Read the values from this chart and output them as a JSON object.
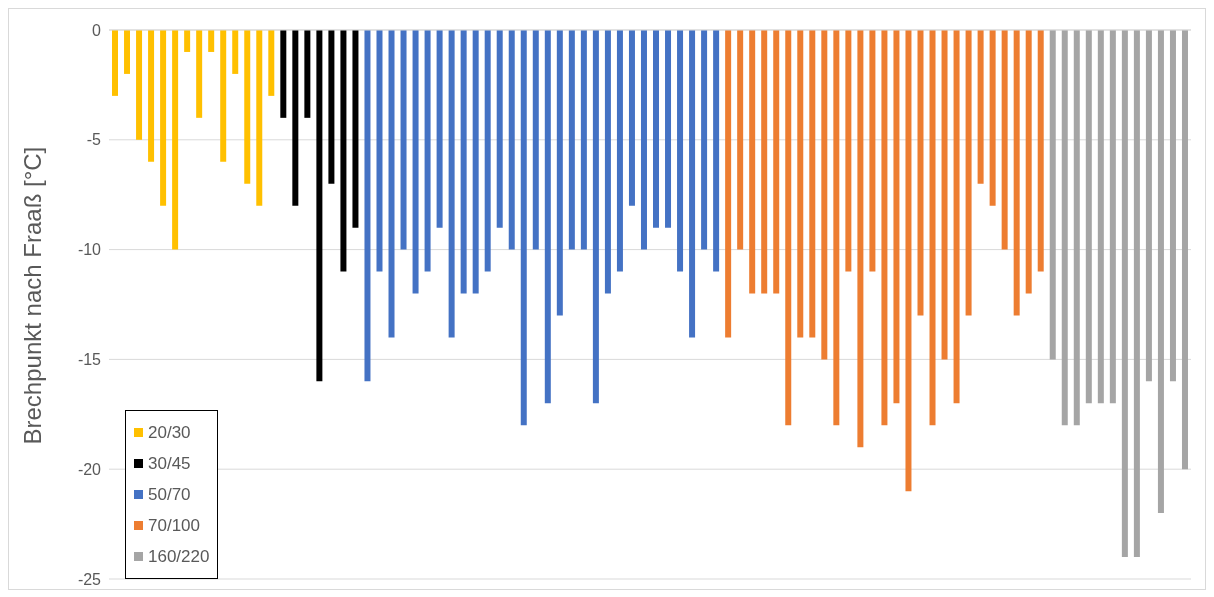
{
  "chart_data": {
    "type": "bar",
    "ylabel": "Brechpunkt nach Fraaß [°C]",
    "categories": [
      null,
      null,
      null,
      null,
      null,
      null,
      null,
      null,
      null,
      null,
      null,
      null,
      null,
      null,
      null,
      null,
      null,
      null,
      null,
      null,
      null,
      null,
      null,
      null,
      null,
      null,
      null,
      null,
      null,
      null,
      null,
      null,
      null,
      null,
      null,
      null,
      null,
      null,
      null,
      null,
      null,
      null,
      null,
      null,
      null,
      null,
      null,
      null,
      null,
      null,
      null,
      null,
      null,
      null,
      null,
      null,
      null,
      null,
      null,
      null,
      null,
      null,
      null,
      null,
      null,
      null,
      null,
      null,
      null,
      null,
      null,
      null,
      null,
      null,
      null,
      null,
      null,
      null,
      null,
      null,
      null,
      null,
      null,
      null,
      null,
      null,
      null,
      null,
      null,
      null
    ],
    "stacked": true,
    "series": [
      {
        "name": "20/30",
        "color": "#ffc000",
        "values": [
          -3,
          -2,
          -5,
          -6,
          -8,
          -10,
          -1,
          -4,
          -1,
          -6,
          -2,
          -7,
          -8,
          -3,
          null,
          null,
          null,
          null,
          null,
          null,
          null,
          null,
          null,
          null,
          null,
          null,
          null,
          null,
          null,
          null,
          null,
          null,
          null,
          null,
          null,
          null,
          null,
          null,
          null,
          null,
          null,
          null,
          null,
          null,
          null,
          null,
          null,
          null,
          null,
          null,
          null,
          null,
          null,
          null,
          null,
          null,
          null,
          null,
          null,
          null,
          null,
          null,
          null,
          null,
          null,
          null,
          null,
          null,
          null,
          null,
          null,
          null,
          null,
          null,
          null,
          null,
          null,
          null,
          null,
          null,
          null,
          null,
          null,
          null,
          null,
          null,
          null,
          null,
          null,
          null
        ]
      },
      {
        "name": "30/45",
        "color": "#000000",
        "values": [
          null,
          null,
          null,
          null,
          null,
          null,
          null,
          null,
          null,
          null,
          null,
          null,
          null,
          null,
          -4,
          -8,
          -4,
          -16,
          -7,
          -11,
          -9,
          null,
          null,
          null,
          null,
          null,
          null,
          null,
          null,
          null,
          null,
          null,
          null,
          null,
          null,
          null,
          null,
          null,
          null,
          null,
          null,
          null,
          null,
          null,
          null,
          null,
          null,
          null,
          null,
          null,
          null,
          null,
          null,
          null,
          null,
          null,
          null,
          null,
          null,
          null,
          null,
          null,
          null,
          null,
          null,
          null,
          null,
          null,
          null,
          null,
          null,
          null,
          null,
          null,
          null,
          null,
          null,
          null,
          null,
          null,
          null,
          null,
          null,
          null,
          null,
          null,
          null,
          null,
          null,
          null
        ]
      },
      {
        "name": "50/70",
        "color": "#4472c4",
        "values": [
          null,
          null,
          null,
          null,
          null,
          null,
          null,
          null,
          null,
          null,
          null,
          null,
          null,
          null,
          null,
          null,
          null,
          null,
          null,
          null,
          null,
          -16,
          -11,
          -14,
          -10,
          -12,
          -11,
          -9,
          -14,
          -12,
          -12,
          -11,
          -9,
          -10,
          -18,
          -10,
          -17,
          -13,
          -10,
          -10,
          -17,
          -12,
          -11,
          -8,
          -10,
          -9,
          -9,
          -11,
          -14,
          -10,
          -11,
          null,
          null,
          null,
          null,
          null,
          null,
          null,
          null,
          null,
          null,
          null,
          null,
          null,
          null,
          null,
          null,
          null,
          null,
          null,
          null,
          null,
          null,
          null,
          null,
          null,
          null,
          null,
          null,
          null,
          null,
          null,
          null,
          null,
          null,
          null,
          null,
          null,
          null,
          null
        ]
      },
      {
        "name": "70/100",
        "color": "#ed7d31",
        "values": [
          null,
          null,
          null,
          null,
          null,
          null,
          null,
          null,
          null,
          null,
          null,
          null,
          null,
          null,
          null,
          null,
          null,
          null,
          null,
          null,
          null,
          null,
          null,
          null,
          null,
          null,
          null,
          null,
          null,
          null,
          null,
          null,
          null,
          null,
          null,
          null,
          null,
          null,
          null,
          null,
          null,
          null,
          null,
          null,
          null,
          null,
          null,
          null,
          null,
          null,
          null,
          -14,
          -10,
          -12,
          -12,
          -12,
          -18,
          -14,
          -14,
          -15,
          -18,
          -11,
          -19,
          -11,
          -18,
          -17,
          -21,
          -13,
          -18,
          -15,
          -17,
          -13,
          -7,
          -8,
          -10,
          -13,
          -12,
          -11,
          null,
          null,
          null,
          null,
          null,
          null,
          null,
          null,
          null,
          null,
          null,
          null
        ]
      },
      {
        "name": "160/220",
        "color": "#a5a5a5",
        "values": [
          null,
          null,
          null,
          null,
          null,
          null,
          null,
          null,
          null,
          null,
          null,
          null,
          null,
          null,
          null,
          null,
          null,
          null,
          null,
          null,
          null,
          null,
          null,
          null,
          null,
          null,
          null,
          null,
          null,
          null,
          null,
          null,
          null,
          null,
          null,
          null,
          null,
          null,
          null,
          null,
          null,
          null,
          null,
          null,
          null,
          null,
          null,
          null,
          null,
          null,
          null,
          null,
          null,
          null,
          null,
          null,
          null,
          null,
          null,
          null,
          null,
          null,
          null,
          null,
          null,
          null,
          null,
          null,
          null,
          null,
          null,
          null,
          null,
          null,
          null,
          null,
          null,
          null,
          -15,
          -18,
          -18,
          -17,
          -17,
          -17,
          -24,
          -24,
          -16,
          -22,
          -16,
          -20
        ]
      }
    ],
    "ylim": [
      -25,
      0
    ],
    "yticks": [
      0,
      -5,
      -10,
      -15,
      -20,
      -25
    ],
    "grid": "y",
    "legend": "bottom left",
    "tick_labels": "y"
  }
}
